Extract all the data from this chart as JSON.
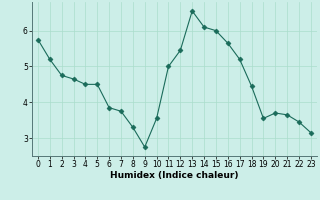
{
  "x": [
    0,
    1,
    2,
    3,
    4,
    5,
    6,
    7,
    8,
    9,
    10,
    11,
    12,
    13,
    14,
    15,
    16,
    17,
    18,
    19,
    20,
    21,
    22,
    23
  ],
  "y": [
    5.75,
    5.2,
    4.75,
    4.65,
    4.5,
    4.5,
    3.85,
    3.75,
    3.3,
    2.75,
    3.55,
    5.0,
    5.45,
    6.55,
    6.1,
    6.0,
    5.65,
    5.2,
    4.45,
    3.55,
    3.7,
    3.65,
    3.45,
    3.15
  ],
  "line_color": "#1a6b5a",
  "marker": "D",
  "marker_size": 2.5,
  "bg_color": "#cceee8",
  "grid_color": "#aaddcc",
  "xlabel": "Humidex (Indice chaleur)",
  "ylim": [
    2.5,
    6.8
  ],
  "xlim": [
    -0.5,
    23.5
  ],
  "yticks": [
    3,
    4,
    5,
    6
  ],
  "xticks": [
    0,
    1,
    2,
    3,
    4,
    5,
    6,
    7,
    8,
    9,
    10,
    11,
    12,
    13,
    14,
    15,
    16,
    17,
    18,
    19,
    20,
    21,
    22,
    23
  ],
  "xlabel_fontsize": 6.5,
  "tick_fontsize": 5.5
}
